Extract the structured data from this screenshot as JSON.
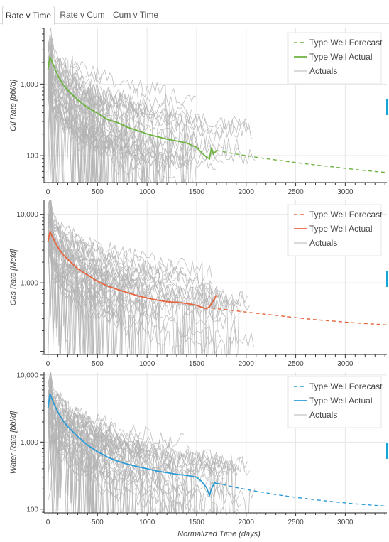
{
  "tabs": [
    {
      "label": "Rate v Time",
      "active": true
    },
    {
      "label": "Rate v Cum",
      "active": false
    },
    {
      "label": "Cum v Time",
      "active": false
    }
  ],
  "colors": {
    "actuals": "#b4b4b4",
    "grid": "#e6e6e6",
    "oil": "#6db33f",
    "gas": "#e8643c",
    "water": "#2b9bd6",
    "scroll_marker": "#15a6d8"
  },
  "chart_data": [
    {
      "type": "line",
      "id": "oil",
      "ylabel": "Oil Rate [bbl/d]",
      "xlabel": "",
      "yscale": "log",
      "xlim": [
        -40,
        3420
      ],
      "ylim": [
        42,
        6000
      ],
      "xticks": [
        0,
        500,
        1000,
        1500,
        2000,
        2500,
        3000
      ],
      "xtick_labels": [
        "0",
        "500",
        "1000",
        "1500",
        "2000",
        "2500",
        "3000"
      ],
      "yticks": [
        100,
        1000
      ],
      "ytick_labels": [
        "100",
        "1,000"
      ],
      "grid": true,
      "legend_position": "top-right",
      "legend": [
        "Type Well Forecast",
        "Type Well Actual",
        "Actuals"
      ],
      "actuals_count": 45,
      "actuals_peak": 3000,
      "actuals_initial": 1800,
      "forecast": {
        "name": "Type Well Forecast",
        "x": [
          1700,
          1900,
          2100,
          2300,
          2500,
          2700,
          2900,
          3100,
          3300,
          3420
        ],
        "y": [
          118,
          105,
          95,
          87,
          80,
          74,
          69,
          64,
          60,
          58
        ]
      },
      "actual": {
        "name": "Type Well Actual",
        "x": [
          0,
          20,
          50,
          100,
          150,
          200,
          300,
          400,
          500,
          600,
          700,
          800,
          900,
          1000,
          1100,
          1200,
          1300,
          1400,
          1500,
          1550,
          1600,
          1630,
          1650,
          1670,
          1700
        ],
        "y": [
          1600,
          2400,
          1900,
          1300,
          1000,
          820,
          600,
          470,
          390,
          320,
          290,
          250,
          225,
          200,
          185,
          170,
          160,
          150,
          130,
          110,
          95,
          90,
          130,
          105,
          118
        ]
      }
    },
    {
      "type": "line",
      "id": "gas",
      "ylabel": "Gas Rate [Mcfd]",
      "xlabel": "",
      "yscale": "log",
      "xlim": [
        -40,
        3420
      ],
      "ylim": [
        90,
        16000
      ],
      "xticks": [
        0,
        500,
        1000,
        1500,
        2000,
        2500,
        3000
      ],
      "xtick_labels": [
        "0",
        "500",
        "1000",
        "1500",
        "2000",
        "2500",
        "3000"
      ],
      "yticks": [
        1000,
        10000
      ],
      "ytick_labels": [
        "1,000",
        "10,000"
      ],
      "grid": true,
      "legend_position": "top-right",
      "legend": [
        "Type Well Forecast",
        "Type Well Actual",
        "Actuals"
      ],
      "actuals_count": 45,
      "actuals_peak": 9000,
      "actuals_initial": 5000,
      "forecast": {
        "name": "Type Well Forecast",
        "x": [
          1650,
          1900,
          2100,
          2300,
          2500,
          2700,
          2900,
          3100,
          3300,
          3420
        ],
        "y": [
          430,
          390,
          360,
          335,
          310,
          290,
          275,
          260,
          250,
          243
        ]
      },
      "actual": {
        "name": "Type Well Actual",
        "x": [
          0,
          20,
          50,
          100,
          150,
          200,
          300,
          400,
          500,
          600,
          700,
          800,
          900,
          1000,
          1100,
          1200,
          1300,
          1400,
          1500,
          1550,
          1600,
          1630,
          1650,
          1680,
          1700
        ],
        "y": [
          4000,
          5600,
          4500,
          3300,
          2600,
          2200,
          1600,
          1300,
          1050,
          900,
          800,
          720,
          650,
          600,
          560,
          530,
          520,
          500,
          470,
          440,
          420,
          450,
          500,
          580,
          660
        ]
      }
    },
    {
      "type": "line",
      "id": "water",
      "ylabel": "Water Rate [bbl/d]",
      "xlabel": "Normalized Time (days)",
      "yscale": "log",
      "xlim": [
        -40,
        3420
      ],
      "ylim": [
        88,
        11000
      ],
      "xticks": [
        0,
        500,
        1000,
        1500,
        2000,
        2500,
        3000
      ],
      "xtick_labels": [
        "0",
        "500",
        "1000",
        "1500",
        "2000",
        "2500",
        "3000"
      ],
      "yticks": [
        100,
        1000,
        10000
      ],
      "ytick_labels": [
        "100",
        "1,000",
        "10,000"
      ],
      "grid": true,
      "legend_position": "top-right",
      "legend": [
        "Type Well Forecast",
        "Type Well Actual",
        "Actuals"
      ],
      "actuals_count": 45,
      "actuals_peak": 7000,
      "actuals_initial": 4000,
      "forecast": {
        "name": "Type Well Forecast",
        "x": [
          1700,
          1900,
          2100,
          2300,
          2500,
          2700,
          2900,
          3100,
          3300,
          3420
        ],
        "y": [
          245,
          210,
          185,
          165,
          150,
          138,
          128,
          120,
          114,
          111
        ]
      },
      "actual": {
        "name": "Type Well Actual",
        "x": [
          0,
          20,
          50,
          100,
          150,
          200,
          300,
          400,
          500,
          600,
          700,
          800,
          900,
          1000,
          1100,
          1200,
          1300,
          1400,
          1500,
          1550,
          1600,
          1630,
          1650,
          1680,
          1700
        ],
        "y": [
          3200,
          5300,
          4000,
          2800,
          2100,
          1700,
          1200,
          900,
          720,
          600,
          520,
          470,
          430,
          400,
          370,
          350,
          330,
          320,
          300,
          260,
          210,
          160,
          200,
          250,
          240
        ]
      }
    }
  ]
}
